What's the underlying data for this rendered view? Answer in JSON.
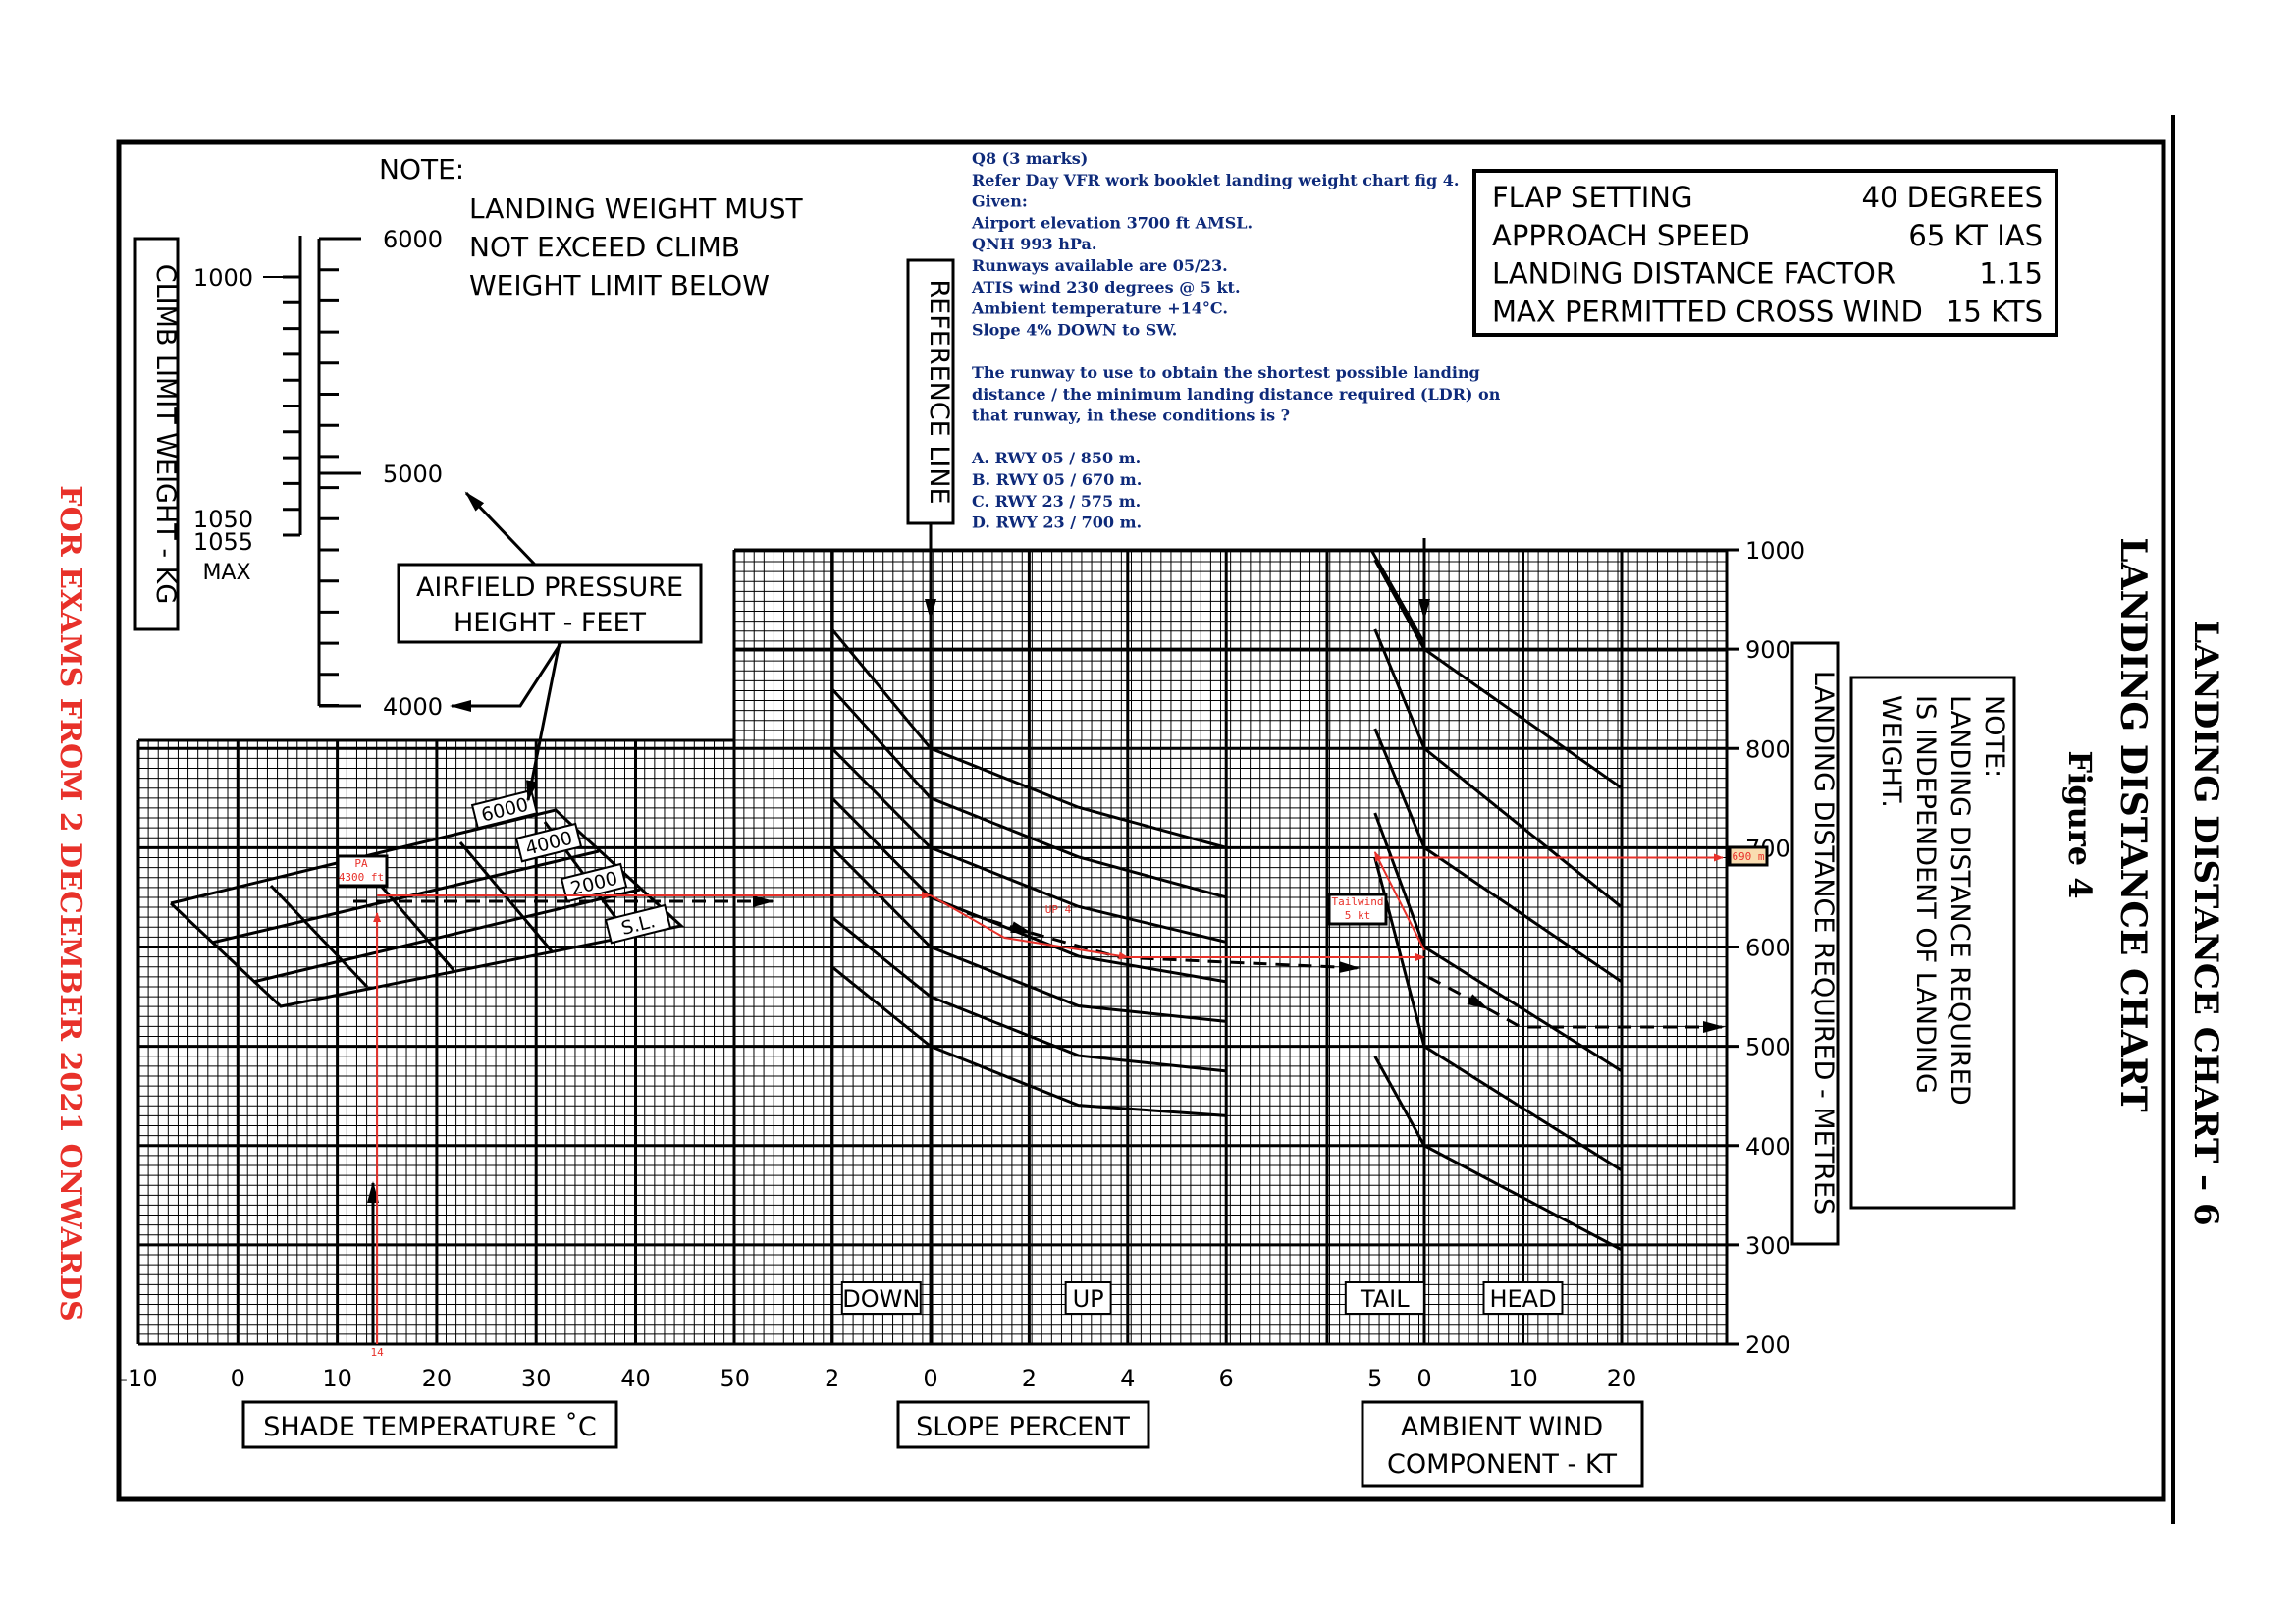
{
  "page": {
    "side_label": "LANDING DISTANCE CHART – 6",
    "title": "LANDING DISTANCE CHART",
    "figure": "Figure 4",
    "exam_notice": "FOR EXAMS FROM 2 DECEMBER 2021 ONWARDS"
  },
  "note_top": {
    "heading": "NOTE:",
    "lines": [
      "LANDING WEIGHT MUST",
      "NOT EXCEED CLIMB",
      "WEIGHT LIMIT BELOW"
    ]
  },
  "note_side": {
    "lines": [
      "NOTE:",
      "LANDING DISTANCE REQUIRED",
      "IS INDEPENDENT OF LANDING",
      "WEIGHT."
    ]
  },
  "info_table": {
    "rows": [
      {
        "label": "FLAP SETTING",
        "value": "40 DEGREES"
      },
      {
        "label": "APPROACH SPEED",
        "value": "65 KT IAS"
      },
      {
        "label": "LANDING DISTANCE FACTOR",
        "value": "1.15"
      },
      {
        "label": "MAX PERMITTED CROSS WIND",
        "value": "15 KTS"
      }
    ]
  },
  "question": {
    "lines": [
      "Q8 (3 marks)",
      "Refer Day VFR work booklet landing weight chart fig 4.",
      "Given:",
      "Airport elevation 3700 ft AMSL.",
      "QNH 993 hPa.",
      "Runways available are 05/23.",
      "ATIS wind 230 degrees @ 5 kt.",
      "Ambient temperature +14°C.",
      "Slope 4% DOWN to SW.",
      "",
      "The runway to use to obtain the shortest possible landing",
      "distance / the minimum landing distance required (LDR) on",
      "that runway, in these conditions is ?",
      "",
      "A. RWY 05 / 850 m.",
      "B. RWY 05 / 670 m.",
      "C. RWY 23 / 575 m.",
      "D. RWY 23 / 700 m."
    ]
  },
  "climb_scale": {
    "label": "CLIMB LIMIT WEIGHT - KG",
    "weight_ticks": [
      "1000",
      "1050",
      "1055"
    ],
    "max_label": "MAX",
    "height_ticks": [
      "6000",
      "5000",
      "4000"
    ],
    "pressure_label": [
      "AIRFIELD PRESSURE",
      "HEIGHT - FEET"
    ]
  },
  "labels": {
    "reference_line": "REFERENCE LINE",
    "ldr_axis": "LANDING DISTANCE REQUIRED - METRES",
    "shade_temp": "SHADE TEMPERATURE ˚C",
    "slope": "SLOPE PERCENT",
    "wind": [
      "AMBIENT WIND",
      "COMPONENT - KT"
    ],
    "down": "DOWN",
    "up": "UP",
    "tail": "TAIL",
    "head": "HEAD"
  },
  "annotations": {
    "pa": [
      "PA",
      "4300 ft"
    ],
    "temp": "14",
    "slope": "UP 4",
    "tailwind": [
      "Tailwind",
      "5 kt"
    ],
    "result": "690 m"
  },
  "chart_data": {
    "type": "line",
    "title": "LANDING DISTANCE CHART",
    "panels": [
      {
        "name": "SHADE TEMPERATURE ˚C",
        "xlabel": "SHADE TEMPERATURE ˚C",
        "x_ticks": [
          "-10",
          "0",
          "10",
          "20",
          "30",
          "40",
          "50"
        ],
        "xlim": [
          -10,
          50
        ],
        "pressure_height_lines": [
          "6000",
          "4000",
          "2000",
          "S.L."
        ]
      },
      {
        "name": "SLOPE PERCENT",
        "xlabel": "SLOPE PERCENT",
        "x_ticks": [
          "2",
          "0",
          "2",
          "4",
          "6"
        ],
        "xlim": [
          -2,
          6
        ],
        "regions": [
          "DOWN",
          "UP"
        ]
      },
      {
        "name": "AMBIENT WIND COMPONENT - KT",
        "xlabel": "AMBIENT WIND COMPONENT - KT",
        "x_ticks": [
          "5",
          "0",
          "10",
          "20"
        ],
        "xlim": [
          -5,
          20
        ],
        "regions": [
          "TAIL",
          "HEAD"
        ]
      }
    ],
    "ylabel": "LANDING DISTANCE REQUIRED - METRES",
    "y_ticks": [
      "200",
      "300",
      "400",
      "500",
      "600",
      "700",
      "800",
      "900",
      "1000"
    ],
    "ylim": [
      200,
      1000
    ],
    "grid": true,
    "worked_solution": {
      "pressure_altitude_ft": 4300,
      "temperature_c": 14,
      "slope_percent": 4,
      "slope_direction": "UP",
      "wind_kt": 5,
      "wind_type": "TAIL",
      "ldr_m": 690
    }
  }
}
